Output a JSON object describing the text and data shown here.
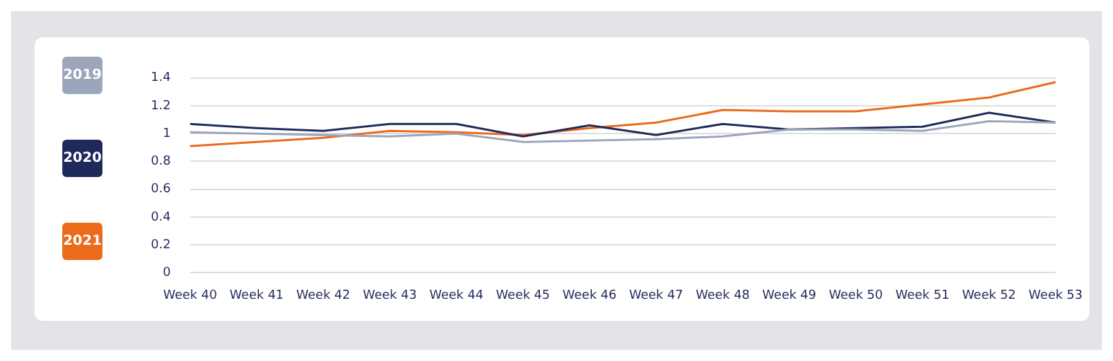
{
  "chart_data": {
    "type": "line",
    "categories": [
      "Week 40",
      "Week 41",
      "Week 42",
      "Week 43",
      "Week 44",
      "Week 45",
      "Week 46",
      "Week 47",
      "Week 48",
      "Week 49",
      "Week 50",
      "Week 51",
      "Week 52",
      "Week 53"
    ],
    "series": [
      {
        "name": "2019",
        "color": "#9ba6bb",
        "values": [
          1.01,
          1.0,
          0.99,
          0.98,
          1.0,
          0.94,
          0.95,
          0.96,
          0.98,
          1.03,
          1.03,
          1.02,
          1.09,
          1.08
        ]
      },
      {
        "name": "2020",
        "color": "#1f2a5c",
        "values": [
          1.07,
          1.04,
          1.02,
          1.07,
          1.07,
          0.98,
          1.06,
          0.99,
          1.07,
          1.03,
          1.04,
          1.05,
          1.15,
          1.08
        ]
      },
      {
        "name": "2021",
        "color": "#eb6a1b",
        "values": [
          0.91,
          0.94,
          0.97,
          1.02,
          1.01,
          0.99,
          1.04,
          1.08,
          1.17,
          1.16,
          1.16,
          1.21,
          1.26,
          1.37
        ]
      }
    ],
    "ylim": [
      0,
      1.4
    ],
    "yticks": [
      0,
      {
        "value": 0.2,
        "label": "0.2"
      },
      {
        "value": 0.4,
        "label": "0.4"
      },
      {
        "value": 0.6,
        "label": "0.6"
      },
      {
        "value": 0.8,
        "label": "0.8"
      },
      1,
      {
        "value": 1.2,
        "label": "1.2"
      },
      {
        "value": 1.4,
        "label": "1.4"
      }
    ],
    "grid": "y",
    "legend": "left",
    "marker": "none",
    "line_style": "solid"
  }
}
